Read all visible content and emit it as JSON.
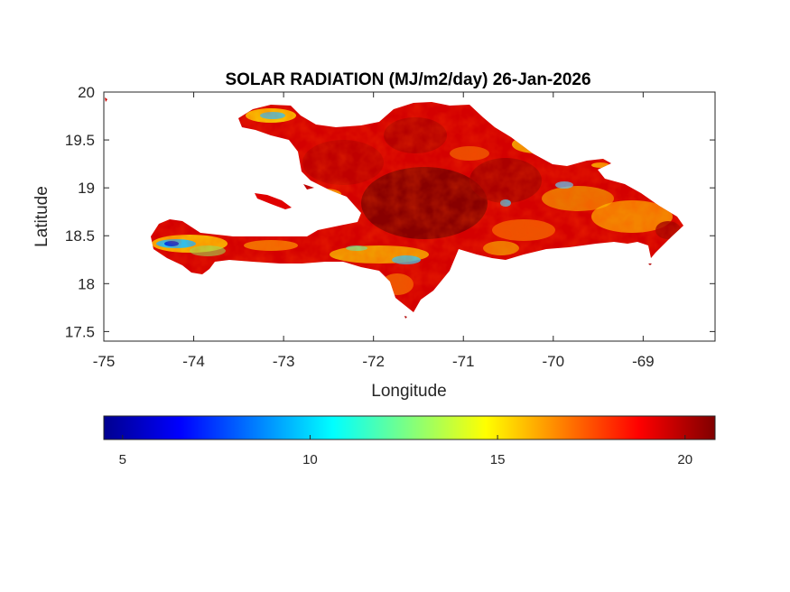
{
  "chart_data": {
    "type": "heatmap",
    "title": "SOLAR RADIATION (MJ/m2/day) 26-Jan-2026",
    "xlabel": "Longitude",
    "ylabel": "Latitude",
    "xlim": [
      -75,
      -68.2
    ],
    "ylim": [
      17.4,
      20
    ],
    "xticks": [
      -75,
      -74,
      -73,
      -72,
      -71,
      -70,
      -69
    ],
    "xtick_labels": [
      "-75",
      "-74",
      "-73",
      "-72",
      "-71",
      "-70",
      "-69"
    ],
    "yticks": [
      17.5,
      18,
      18.5,
      19,
      19.5,
      20
    ],
    "ytick_labels": [
      "17.5",
      "18",
      "18.5",
      "19",
      "19.5",
      "20"
    ],
    "grid": false,
    "region": "Hispaniola (Haiti and Dominican Republic)",
    "colormap": "jet",
    "colorbar": {
      "orientation": "horizontal",
      "location": "below",
      "clim": [
        4.5,
        20.8
      ],
      "ticks": [
        5,
        10,
        15,
        20
      ],
      "tick_labels": [
        "5",
        "10",
        "15",
        "20"
      ]
    },
    "values_summary": {
      "dominant_range": [
        18,
        20.8
      ],
      "min_observed": 6,
      "low_value_areas": [
        "southwest peninsula tip near -74.4, 18.4",
        "northwest peninsula near -73.3, 19.7",
        "north-central Dominican Republic near -70.6, 19.5",
        "south coast near -71.7, 18.3"
      ]
    }
  }
}
